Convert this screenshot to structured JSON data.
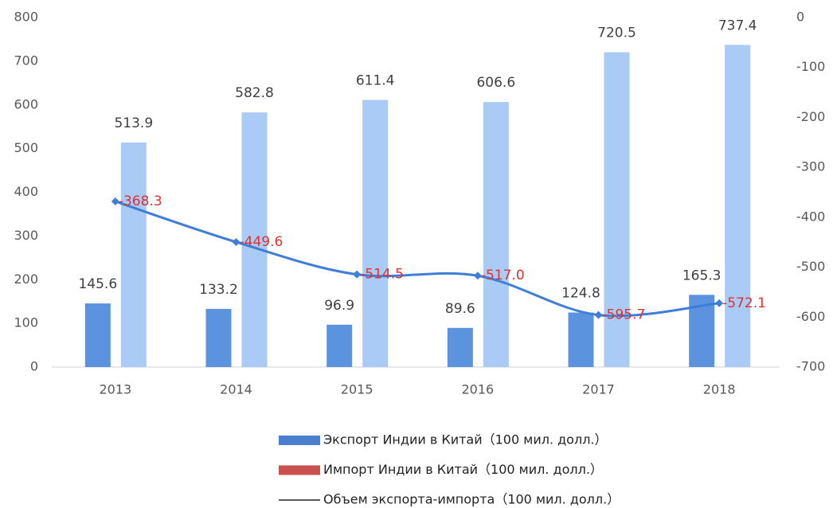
{
  "chart_data": {
    "type": "bar",
    "categories": [
      "2013",
      "2014",
      "2015",
      "2016",
      "2017",
      "2018"
    ],
    "series": [
      {
        "name": "Экспорт Индии в Китай（100 мил. долл.）",
        "color": "#5b93de",
        "legend_color": "#4a7fcf",
        "type": "bar",
        "values": [
          145.6,
          133.2,
          96.9,
          89.6,
          124.8,
          165.3
        ]
      },
      {
        "name": "Импорт Индии в Китай（100 мил. долл.）",
        "color": "#a9cbf5",
        "legend_color": "#c9504f",
        "type": "bar",
        "values": [
          513.9,
          582.8,
          611.4,
          606.6,
          720.5,
          737.4
        ]
      },
      {
        "name": "Объем экспорта-импорта（100 мил. долл.）",
        "color": "#3f7ed8",
        "legend_color": "#222222",
        "label_color": "#e0302f",
        "type": "line",
        "axis": "y2",
        "values": [
          -368.3,
          -449.6,
          -514.5,
          -517.0,
          -595.7,
          -572.1
        ],
        "value_labels": [
          "-368.3",
          "-449.6",
          "-514.5",
          "-517.0",
          "-595.7",
          "-572.1"
        ]
      }
    ],
    "ylim": [
      0,
      800
    ],
    "yticks": [
      0,
      100,
      200,
      300,
      400,
      500,
      600,
      700,
      800
    ],
    "y2lim": [
      -700,
      0
    ],
    "y2ticks": [
      0,
      -100,
      -200,
      -300,
      -400,
      -500,
      -600,
      -700
    ],
    "grid": false
  }
}
